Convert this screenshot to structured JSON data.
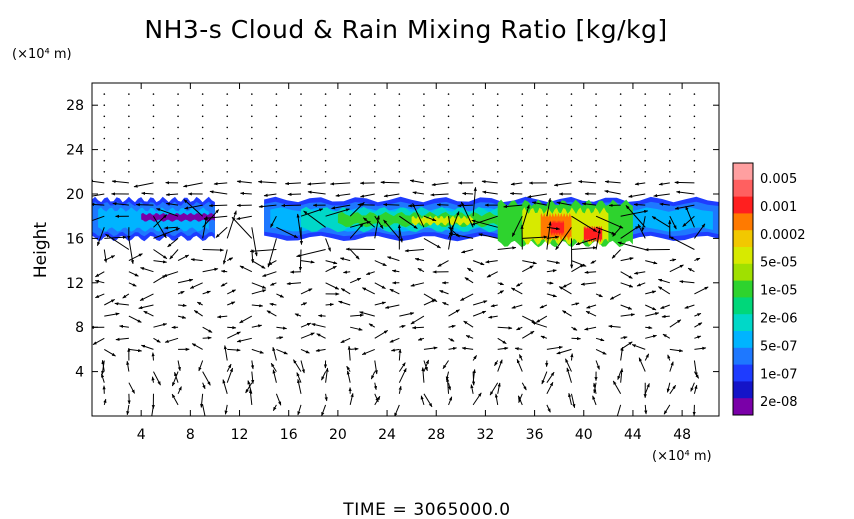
{
  "chart_data": {
    "type": "heatmap",
    "title": "NH3-s Cloud & Rain Mixing Ratio [kg/kg]",
    "xlabel": "",
    "ylabel": "Height",
    "x_unit": "(×10⁴ m)",
    "y_unit": "(×10⁴ m)",
    "xlim": [
      0,
      51
    ],
    "ylim": [
      0,
      30
    ],
    "x_ticks": [
      "4",
      "8",
      "12",
      "16",
      "20",
      "24",
      "28",
      "32",
      "36",
      "40",
      "44",
      "48"
    ],
    "y_ticks": [
      "4",
      "8",
      "12",
      "16",
      "20",
      "24",
      "28"
    ],
    "colorbar": {
      "labels": [
        "0.005",
        "0.001",
        "0.0002",
        "5e-05",
        "1e-05",
        "2e-06",
        "5e-07",
        "1e-07",
        "2e-08"
      ],
      "colors": [
        "#ff9fa0",
        "#ff6060",
        "#ff1f1f",
        "#ff7a00",
        "#f2c800",
        "#d7ea00",
        "#a0e000",
        "#2ed32e",
        "#00d77a",
        "#00d8c8",
        "#00b4ff",
        "#1e78ff",
        "#1e3cff",
        "#1414c8",
        "#7a00a8"
      ]
    },
    "cloud_layer": {
      "base_height": 16,
      "top_height": 19.5,
      "segments": [
        {
          "x_start": 0,
          "x_end": 10
        },
        {
          "x_start": 14,
          "x_end": 51
        }
      ],
      "max_region_x": [
        36,
        42
      ],
      "max_region_height": [
        15.5,
        18.5
      ]
    }
  },
  "footer": {
    "time_text": "TIME = 3065000.0"
  },
  "colors": {
    "axis": "#000000",
    "arrow": "#000000",
    "background": "#ffffff"
  }
}
